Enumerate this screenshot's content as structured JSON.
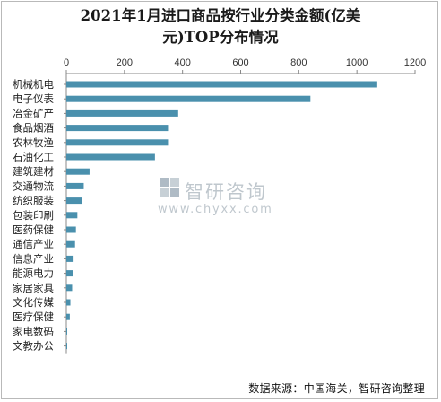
{
  "title_line1": "2021年1月进口商品按行业分类金额(亿美",
  "title_line2": "元)TOP分布情况",
  "source": "数据来源：中国海关，智研咨询整理",
  "watermark": {
    "name": "智研咨询",
    "url": "www.chyxx.com"
  },
  "colors": {
    "bar": "#4a90ad",
    "axis": "#888888",
    "text": "#333333"
  },
  "chart_data": {
    "type": "bar",
    "orientation": "horizontal",
    "categories": [
      "机械机电",
      "电子仪表",
      "冶金矿产",
      "食品烟酒",
      "农林牧渔",
      "石油化工",
      "建筑建材",
      "交通物流",
      "纺织服装",
      "包装印刷",
      "医药保健",
      "通信产业",
      "信息产业",
      "能源电力",
      "家居家具",
      "文化传媒",
      "医疗保健",
      "家电数码",
      "文教办公"
    ],
    "values": [
      1070,
      840,
      385,
      350,
      350,
      305,
      80,
      60,
      55,
      38,
      33,
      30,
      25,
      22,
      20,
      14,
      12,
      3,
      2
    ],
    "xlim": [
      0,
      1200
    ],
    "xticks": [
      0,
      200,
      400,
      600,
      800,
      1000,
      1200
    ],
    "xaxis_position": "top",
    "grid": false,
    "legend": "none"
  }
}
